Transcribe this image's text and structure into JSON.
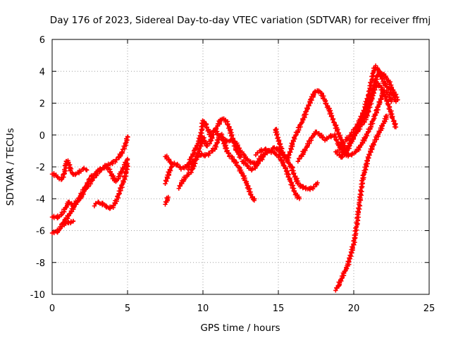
{
  "chart_data": {
    "type": "scatter",
    "title": "Day 176 of 2023, Sidereal Day-to-day VTEC variation (SDTVAR) for receiver ffmj",
    "xlabel": "GPS time / hours",
    "ylabel": "SDTVAR / TECUs",
    "xlim": [
      0,
      25
    ],
    "ylim": [
      -10,
      6
    ],
    "x_ticks": [
      "0",
      "5",
      "10",
      "15",
      "20",
      "25"
    ],
    "y_ticks": [
      "-10",
      "-8",
      "-6",
      "-4",
      "-2",
      "0",
      "2",
      "4",
      "6"
    ],
    "grid": true,
    "marker": "+",
    "color": "#ff0000",
    "series": [
      {
        "name": "s1",
        "x": [
          0.0,
          0.3,
          0.6,
          0.8,
          0.9,
          1.0,
          1.1,
          1.3,
          1.5,
          1.8,
          2.1,
          2.3
        ],
        "y": [
          -2.4,
          -2.6,
          -2.8,
          -2.5,
          -1.9,
          -1.6,
          -1.8,
          -2.4,
          -2.5,
          -2.3,
          -2.1,
          -2.2
        ]
      },
      {
        "name": "s2",
        "x": [
          0.0,
          0.3,
          0.5,
          0.7,
          0.9,
          1.2,
          1.5,
          1.9,
          2.2,
          2.6,
          3.0,
          3.3,
          3.6,
          3.9,
          4.2,
          4.5,
          4.7,
          4.9,
          5.0
        ],
        "y": [
          -6.1,
          -6.1,
          -5.9,
          -5.6,
          -5.3,
          -4.9,
          -4.4,
          -3.9,
          -3.4,
          -2.9,
          -2.4,
          -2.1,
          -1.9,
          -1.8,
          -1.6,
          -1.3,
          -1.0,
          -0.5,
          -0.1
        ]
      },
      {
        "name": "s3",
        "x": [
          0.0,
          0.3,
          0.6,
          0.9,
          1.1,
          1.4,
          1.7,
          2.0,
          2.3,
          2.6,
          3.0,
          3.3,
          3.6,
          3.8,
          4.0,
          4.2,
          4.4,
          4.6,
          4.8,
          5.0
        ],
        "y": [
          -5.1,
          -5.2,
          -5.0,
          -4.6,
          -4.2,
          -4.4,
          -4.1,
          -3.6,
          -3.1,
          -2.6,
          -2.3,
          -2.1,
          -2.0,
          -2.2,
          -2.6,
          -2.9,
          -2.7,
          -2.3,
          -1.9,
          -1.5
        ]
      },
      {
        "name": "s4",
        "x": [
          0.8,
          1.0,
          1.2,
          1.4
        ],
        "y": [
          -5.6,
          -5.5,
          -5.5,
          -5.4
        ]
      },
      {
        "name": "s5",
        "x": [
          2.8,
          3.0,
          3.3,
          3.6,
          3.9,
          4.1,
          4.3,
          4.5,
          4.7,
          4.9,
          5.0
        ],
        "y": [
          -4.4,
          -4.2,
          -4.3,
          -4.5,
          -4.6,
          -4.4,
          -4.0,
          -3.5,
          -3.0,
          -2.4,
          -1.8
        ]
      },
      {
        "name": "s6",
        "x": [
          7.5,
          7.7,
          7.9,
          8.1,
          8.3,
          8.6,
          8.9,
          9.1,
          9.3,
          9.5,
          9.7,
          9.9,
          10.0,
          10.2,
          10.4,
          10.6
        ],
        "y": [
          -3.0,
          -2.5,
          -2.0,
          -1.8,
          -1.9,
          -2.1,
          -2.0,
          -1.7,
          -1.3,
          -0.9,
          -0.5,
          0.2,
          0.9,
          0.6,
          0.2,
          -0.2
        ]
      },
      {
        "name": "s7",
        "x": [
          7.5,
          7.6,
          7.7
        ],
        "y": [
          -4.3,
          -4.1,
          -3.9
        ]
      },
      {
        "name": "s8",
        "x": [
          7.5,
          7.7,
          7.9
        ],
        "y": [
          -1.3,
          -1.5,
          -1.8
        ]
      },
      {
        "name": "s9",
        "x": [
          8.4,
          8.7,
          9.0,
          9.3,
          9.5,
          9.8,
          10.0,
          10.2,
          10.5,
          10.7,
          11.0,
          11.2,
          11.4,
          11.6,
          11.8,
          12.0,
          12.2,
          12.5
        ],
        "y": [
          -3.3,
          -2.8,
          -2.5,
          -2.2,
          -1.6,
          -0.8,
          -0.1,
          -0.7,
          -0.4,
          0.2,
          0.6,
          1.0,
          1.0,
          0.8,
          0.3,
          -0.3,
          -0.9,
          -1.4
        ]
      },
      {
        "name": "s10",
        "x": [
          9.0,
          9.3,
          9.6,
          9.9,
          10.2,
          10.5,
          10.8,
          11.0,
          11.2,
          11.4,
          11.6,
          11.8,
          12.0,
          12.2,
          12.4,
          12.6,
          12.8,
          13.0,
          13.2,
          13.4
        ],
        "y": [
          -2.1,
          -1.8,
          -1.4,
          -1.2,
          -1.3,
          -1.1,
          -0.8,
          -0.3,
          0.0,
          -0.5,
          -1.0,
          -1.3,
          -1.5,
          -1.8,
          -2.1,
          -2.4,
          -2.8,
          -3.3,
          -3.8,
          -4.1
        ]
      },
      {
        "name": "s11",
        "x": [
          10.8,
          11.0,
          11.3,
          11.6,
          11.9,
          12.2,
          12.5,
          12.8,
          13.1,
          13.4,
          13.7,
          14.0
        ],
        "y": [
          0.4,
          0.0,
          -0.2,
          -0.4,
          -0.3,
          -0.5,
          -1.0,
          -1.4,
          -1.7,
          -1.8,
          -1.6,
          -1.2
        ]
      },
      {
        "name": "s12",
        "x": [
          12.6,
          12.9,
          13.2,
          13.5,
          13.8,
          14.1,
          14.4,
          14.7,
          15.0,
          15.2,
          15.4,
          15.6,
          15.8,
          16.0,
          16.2,
          16.4
        ],
        "y": [
          -1.6,
          -1.9,
          -2.2,
          -2.0,
          -1.6,
          -1.2,
          -1.0,
          -1.1,
          -1.3,
          -1.6,
          -1.9,
          -2.4,
          -2.9,
          -3.4,
          -3.8,
          -4.0
        ]
      },
      {
        "name": "s13",
        "x": [
          13.5,
          13.8,
          14.1,
          14.4,
          14.7,
          15.0,
          15.3,
          15.6,
          15.9,
          16.1,
          16.3,
          16.5,
          16.7,
          17.0,
          17.3,
          17.6
        ],
        "y": [
          -1.2,
          -1.0,
          -0.9,
          -1.0,
          -0.8,
          -0.9,
          -1.2,
          -1.6,
          -2.1,
          -2.6,
          -3.0,
          -3.2,
          -3.3,
          -3.4,
          -3.3,
          -3.0
        ]
      },
      {
        "name": "s14",
        "x": [
          14.8,
          15.0,
          15.2,
          15.4,
          15.6,
          15.8,
          16.0,
          16.3,
          16.6,
          16.9,
          17.2,
          17.5,
          17.8,
          18.1,
          18.4,
          18.7,
          19.0,
          19.3,
          19.6
        ],
        "y": [
          0.4,
          -0.3,
          -0.9,
          -1.4,
          -1.5,
          -1.0,
          -0.3,
          0.3,
          0.9,
          1.6,
          2.3,
          2.8,
          2.7,
          2.1,
          1.5,
          0.8,
          0.1,
          -0.6,
          -1.2
        ]
      },
      {
        "name": "s15",
        "x": [
          16.3,
          16.6,
          16.9,
          17.2,
          17.5,
          17.8,
          18.1,
          18.4,
          18.7,
          19.0,
          19.3,
          19.6,
          19.9,
          20.2,
          20.5,
          20.8,
          21.0,
          21.2,
          21.4,
          21.6,
          21.8,
          22.0,
          22.2,
          22.4,
          22.6,
          22.8
        ],
        "y": [
          -1.6,
          -1.2,
          -0.7,
          -0.2,
          0.2,
          0.0,
          -0.3,
          -0.1,
          0.0,
          -0.6,
          -1.2,
          -0.8,
          -0.2,
          0.2,
          0.6,
          1.0,
          1.6,
          2.3,
          3.0,
          3.2,
          3.0,
          2.6,
          2.2,
          1.6,
          1.0,
          0.5
        ]
      },
      {
        "name": "s16",
        "x": [
          18.8,
          19.0,
          19.2,
          19.4,
          19.6,
          19.8,
          20.0,
          20.2,
          20.4,
          20.6,
          20.8,
          21.0,
          21.2,
          21.4,
          21.6,
          21.8,
          22.0,
          22.3,
          22.6,
          22.9
        ],
        "y": [
          -1.0,
          -1.2,
          -1.4,
          -1.2,
          -0.9,
          -0.5,
          -0.1,
          0.3,
          0.7,
          1.1,
          1.5,
          2.0,
          2.6,
          3.3,
          3.8,
          3.9,
          3.8,
          3.4,
          2.8,
          2.2
        ]
      },
      {
        "name": "s17",
        "x": [
          19.2,
          19.5,
          19.8,
          20.1,
          20.4,
          20.7,
          21.0,
          21.2,
          21.4,
          21.6,
          21.8,
          22.0,
          22.2,
          22.4,
          22.6,
          22.8
        ],
        "y": [
          -0.5,
          -0.3,
          0.0,
          0.4,
          0.9,
          1.6,
          2.6,
          3.5,
          4.3,
          4.1,
          3.7,
          3.3,
          3.0,
          2.8,
          2.5,
          2.1
        ]
      },
      {
        "name": "s18",
        "x": [
          19.0,
          19.3,
          19.6,
          19.9,
          20.2,
          20.5,
          20.8,
          21.1,
          21.4,
          21.7,
          22.0,
          22.3,
          22.5
        ],
        "y": [
          -0.6,
          -0.9,
          -1.3,
          -1.2,
          -1.0,
          -0.6,
          -0.1,
          0.5,
          1.2,
          2.0,
          2.8,
          2.6,
          2.1
        ]
      },
      {
        "name": "s19",
        "x": [
          18.8,
          19.0,
          19.2,
          19.4,
          19.6,
          19.8,
          20.0,
          20.1,
          20.2,
          20.3,
          20.4,
          20.5,
          20.6,
          20.8,
          21.0,
          21.2,
          21.4,
          21.6,
          21.8,
          22.0,
          22.2
        ],
        "y": [
          -9.7,
          -9.4,
          -9.0,
          -8.6,
          -8.2,
          -7.5,
          -6.8,
          -6.2,
          -5.6,
          -4.9,
          -4.2,
          -3.4,
          -2.7,
          -2.0,
          -1.3,
          -0.8,
          -0.4,
          0.0,
          0.4,
          0.8,
          1.2
        ]
      }
    ]
  }
}
